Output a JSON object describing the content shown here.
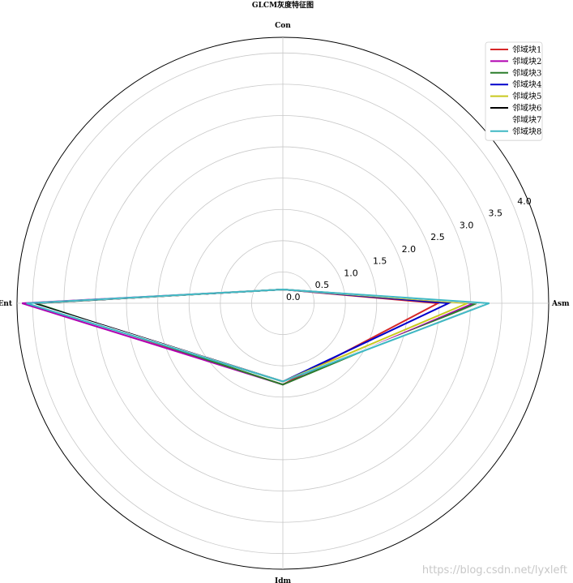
{
  "chart_data": {
    "type": "radar",
    "title": "GLCM灰度特征图",
    "axes": [
      "Asm",
      "Con",
      "Ent",
      "Idm"
    ],
    "radial_ticks": [
      0.0,
      0.5,
      1.0,
      1.5,
      2.0,
      2.5,
      3.0,
      3.5,
      4.0
    ],
    "rlim": [
      0,
      4.25
    ],
    "grid": true,
    "legend_position": "top-right",
    "series": [
      {
        "name": "邻域块1",
        "color": "#d62728",
        "values": [
          2.48,
          0.22,
          4.0,
          1.3
        ]
      },
      {
        "name": "邻域块2",
        "color": "#b000b0",
        "values": [
          3.05,
          0.22,
          4.17,
          1.3
        ]
      },
      {
        "name": "邻域块3",
        "color": "#2a7d2a",
        "values": [
          3.1,
          0.22,
          3.95,
          1.3
        ]
      },
      {
        "name": "邻域块4",
        "color": "#0000cc",
        "values": [
          2.65,
          0.22,
          4.0,
          1.25
        ]
      },
      {
        "name": "邻域块5",
        "color": "#c8c81e",
        "values": [
          2.95,
          0.22,
          4.05,
          1.25
        ]
      },
      {
        "name": "邻域块6",
        "color": "#000000",
        "values": [
          3.2,
          0.22,
          4.0,
          1.25
        ]
      },
      {
        "name": "邻域块7",
        "color": "#ffffff",
        "values": [
          3.2,
          0.22,
          4.05,
          1.25
        ]
      },
      {
        "name": "邻域块8",
        "color": "#3fb8c4",
        "values": [
          3.3,
          0.22,
          4.1,
          1.25
        ]
      }
    ]
  },
  "watermark": "https://blog.csdn.net/lyxleft"
}
